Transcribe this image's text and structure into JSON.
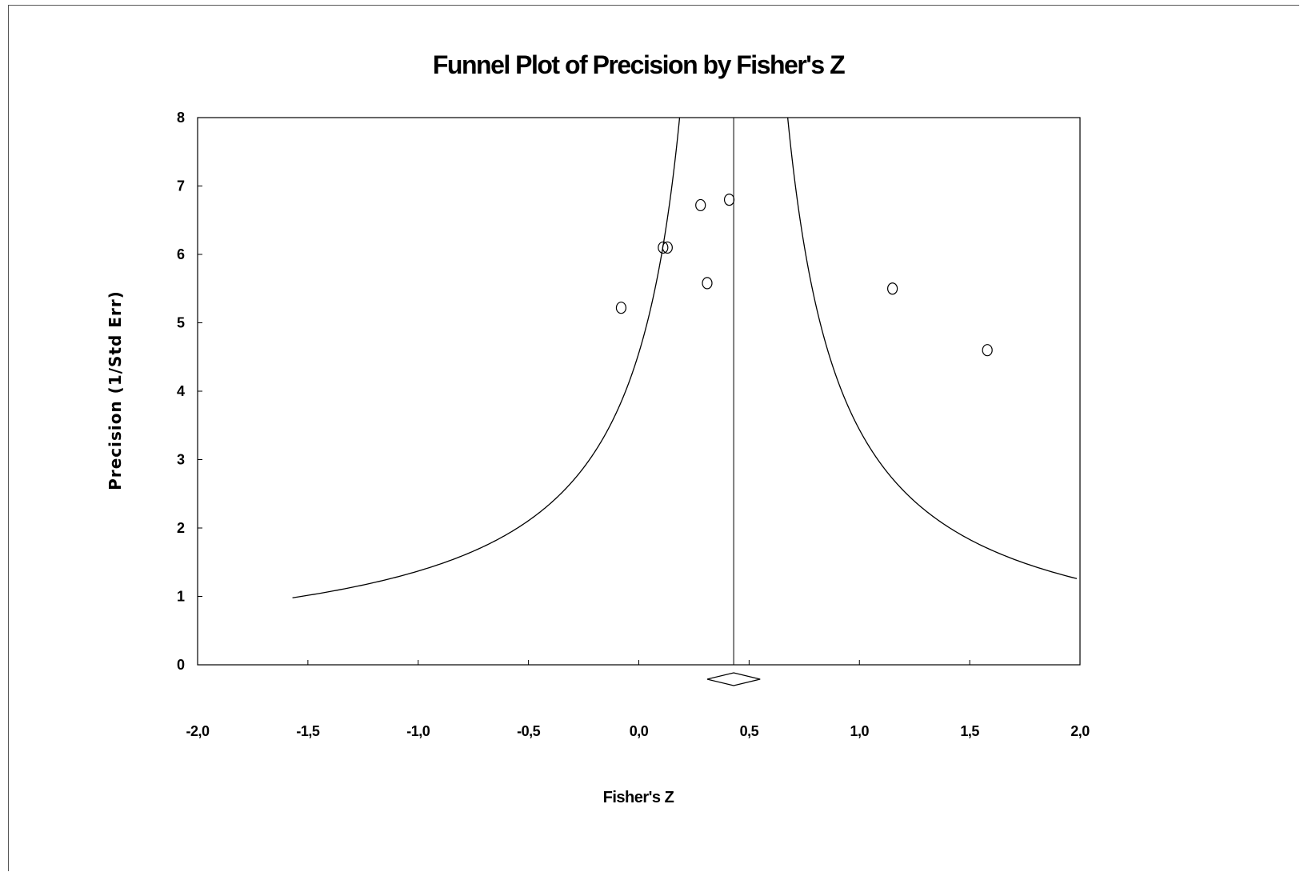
{
  "chart_data": {
    "type": "scatter",
    "title": "Funnel Plot of Precision by Fisher's Z",
    "xlabel": "Fisher's Z",
    "ylabel": "Precision (1/Std Err)",
    "xlim": [
      -2.0,
      2.0
    ],
    "ylim": [
      0,
      8
    ],
    "x_ticks": [
      -2.0,
      -1.5,
      -1.0,
      -0.5,
      0.0,
      0.5,
      1.0,
      1.5,
      2.0
    ],
    "x_tick_labels": [
      "-2,0",
      "-1,5",
      "-1,0",
      "-0,5",
      "0,0",
      "0,5",
      "1,0",
      "1,5",
      "2,0"
    ],
    "y_ticks": [
      0,
      1,
      2,
      3,
      4,
      5,
      6,
      7,
      8
    ],
    "y_tick_labels": [
      "0",
      "1",
      "2",
      "3",
      "4",
      "5",
      "6",
      "7",
      "8"
    ],
    "grid": false,
    "points": [
      {
        "x": -0.08,
        "y": 5.22
      },
      {
        "x": 0.11,
        "y": 6.1
      },
      {
        "x": 0.13,
        "y": 6.1
      },
      {
        "x": 0.28,
        "y": 6.72
      },
      {
        "x": 0.31,
        "y": 5.58
      },
      {
        "x": 0.41,
        "y": 6.8
      },
      {
        "x": 1.15,
        "y": 5.5
      },
      {
        "x": 1.58,
        "y": 4.6
      }
    ],
    "summary_effect": {
      "estimate": 0.43,
      "ci": [
        0.31,
        0.55
      ]
    },
    "funnel_z": 1.96
  }
}
